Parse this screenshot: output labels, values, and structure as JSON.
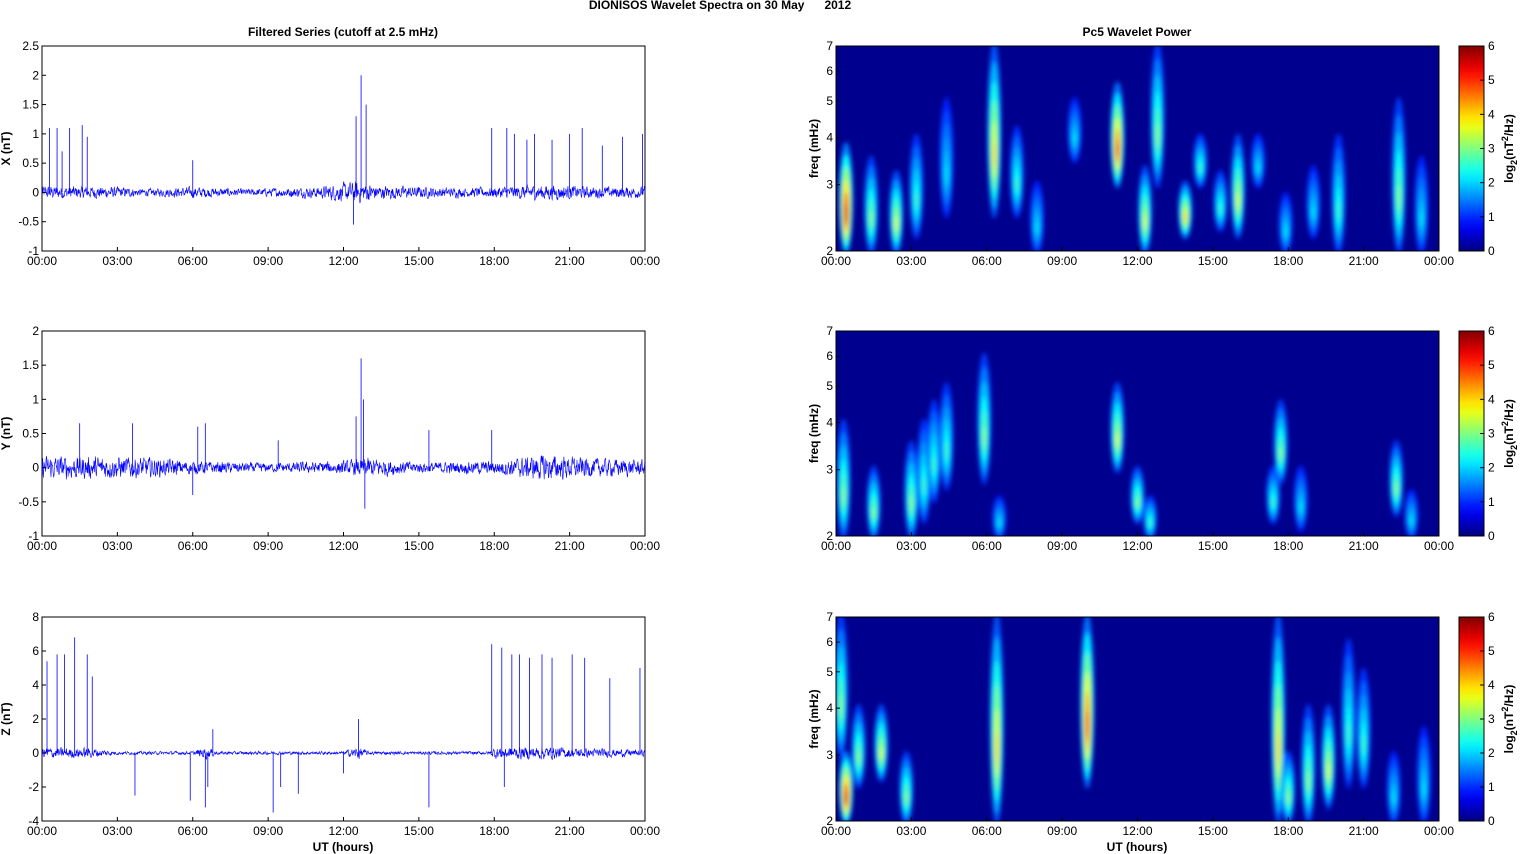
{
  "figure_title": "DIONISOS Wavelet Spectra on 30 May      2012",
  "left_title": "Filtered Series (cutoff at 2.5 mHz)",
  "right_title": "Pc5 Wavelet Power",
  "xlabel": "UT (hours)",
  "colors": {
    "trace": "#0000ff",
    "background": "#00008f"
  },
  "chart_data": [
    {
      "type": "line",
      "name": "X",
      "ylabel": "X (nT)",
      "xlim": [
        0,
        24
      ],
      "ylim": [
        -1,
        2.5
      ],
      "xticks": [
        "00:00",
        "03:00",
        "06:00",
        "09:00",
        "12:00",
        "15:00",
        "18:00",
        "21:00",
        "00:00"
      ],
      "yticks": [
        "-1",
        "-0.5",
        "0",
        "0.5",
        "1",
        "1.5",
        "2",
        "2.5"
      ],
      "ytick_values": [
        -1,
        -0.5,
        0,
        0.5,
        1,
        1.5,
        2,
        2.5
      ],
      "noise_amplitude": [
        [
          0,
          0.12
        ],
        [
          3,
          0.1
        ],
        [
          4,
          0.06
        ],
        [
          6,
          0.1
        ],
        [
          8,
          0.06
        ],
        [
          11,
          0.1
        ],
        [
          12.5,
          0.2
        ],
        [
          13.5,
          0.12
        ],
        [
          17,
          0.08
        ],
        [
          20,
          0.14
        ],
        [
          22,
          0.1
        ],
        [
          24,
          0.1
        ]
      ],
      "spikes": [
        [
          0.3,
          1.1
        ],
        [
          0.6,
          1.1
        ],
        [
          0.8,
          0.7
        ],
        [
          1.1,
          1.1
        ],
        [
          1.6,
          1.15
        ],
        [
          1.8,
          0.95
        ],
        [
          6.0,
          0.55
        ],
        [
          12.5,
          1.3
        ],
        [
          12.7,
          2.0
        ],
        [
          12.9,
          1.5
        ],
        [
          12.4,
          -0.55
        ],
        [
          17.9,
          1.1
        ],
        [
          18.5,
          1.1
        ],
        [
          18.8,
          1.0
        ],
        [
          19.3,
          0.9
        ],
        [
          19.6,
          1.0
        ],
        [
          20.3,
          0.9
        ],
        [
          21.0,
          1.0
        ],
        [
          21.5,
          1.1
        ],
        [
          22.3,
          0.8
        ],
        [
          23.1,
          0.95
        ],
        [
          23.9,
          1.0
        ]
      ]
    },
    {
      "type": "line",
      "name": "Y",
      "ylabel": "Y (nT)",
      "xlim": [
        0,
        24
      ],
      "ylim": [
        -1,
        2
      ],
      "xticks": [
        "00:00",
        "03:00",
        "06:00",
        "09:00",
        "12:00",
        "15:00",
        "18:00",
        "21:00",
        "00:00"
      ],
      "yticks": [
        "-1",
        "-0.5",
        "0",
        "0.5",
        "1",
        "1.5",
        "2"
      ],
      "ytick_values": [
        -1,
        -0.5,
        0,
        0.5,
        1,
        1.5,
        2
      ],
      "noise_amplitude": [
        [
          0,
          0.18
        ],
        [
          4,
          0.16
        ],
        [
          6,
          0.1
        ],
        [
          9,
          0.07
        ],
        [
          12,
          0.1
        ],
        [
          13,
          0.15
        ],
        [
          15,
          0.08
        ],
        [
          18,
          0.1
        ],
        [
          20,
          0.2
        ],
        [
          22,
          0.14
        ],
        [
          24,
          0.12
        ]
      ],
      "spikes": [
        [
          1.5,
          0.65
        ],
        [
          3.6,
          0.65
        ],
        [
          6.0,
          -0.4
        ],
        [
          6.2,
          0.6
        ],
        [
          6.5,
          0.65
        ],
        [
          9.4,
          0.4
        ],
        [
          12.5,
          0.75
        ],
        [
          12.7,
          1.6
        ],
        [
          12.8,
          1.0
        ],
        [
          12.85,
          -0.6
        ],
        [
          15.4,
          0.55
        ],
        [
          17.9,
          0.55
        ]
      ]
    },
    {
      "type": "line",
      "name": "Z",
      "ylabel": "Z (nT)",
      "xlim": [
        0,
        24
      ],
      "ylim": [
        -4,
        8
      ],
      "xticks": [
        "00:00",
        "03:00",
        "06:00",
        "09:00",
        "12:00",
        "15:00",
        "18:00",
        "21:00",
        "00:00"
      ],
      "yticks": [
        "-4",
        "-2",
        "0",
        "2",
        "4",
        "6",
        "8"
      ],
      "ytick_values": [
        -4,
        -2,
        0,
        2,
        4,
        6,
        8
      ],
      "noise_amplitude": [
        [
          0,
          0.35
        ],
        [
          2,
          0.3
        ],
        [
          3,
          0.1
        ],
        [
          6,
          0.1
        ],
        [
          6.5,
          0.4
        ],
        [
          7,
          0.1
        ],
        [
          12,
          0.1
        ],
        [
          12.6,
          0.4
        ],
        [
          13,
          0.1
        ],
        [
          17.8,
          0.1
        ],
        [
          18,
          0.35
        ],
        [
          20,
          0.4
        ],
        [
          21,
          0.3
        ],
        [
          24,
          0.2
        ]
      ],
      "spikes": [
        [
          0.2,
          5.4
        ],
        [
          0.6,
          5.8
        ],
        [
          0.9,
          5.8
        ],
        [
          1.3,
          6.8
        ],
        [
          1.8,
          5.8
        ],
        [
          2.0,
          4.5
        ],
        [
          3.7,
          -2.5
        ],
        [
          5.9,
          -2.8
        ],
        [
          6.5,
          -3.2
        ],
        [
          6.6,
          -2.0
        ],
        [
          6.8,
          1.4
        ],
        [
          9.2,
          -3.5
        ],
        [
          9.5,
          -2.0
        ],
        [
          10.2,
          -2.4
        ],
        [
          12.0,
          -1.2
        ],
        [
          12.6,
          2.0
        ],
        [
          15.4,
          -3.2
        ],
        [
          17.9,
          6.4
        ],
        [
          18.3,
          6.2
        ],
        [
          18.4,
          -2.0
        ],
        [
          18.7,
          5.8
        ],
        [
          19.0,
          5.8
        ],
        [
          19.4,
          5.6
        ],
        [
          19.9,
          5.8
        ],
        [
          20.3,
          5.6
        ],
        [
          21.1,
          5.8
        ],
        [
          21.6,
          5.6
        ],
        [
          22.6,
          4.4
        ],
        [
          23.8,
          5.0
        ]
      ]
    },
    {
      "type": "heatmap",
      "name": "X wavelet power",
      "ylabel": "freq (mHz)",
      "yscale": "log",
      "ylim": [
        2,
        7
      ],
      "clim": [
        0,
        6
      ],
      "colorbar_label": "log2(nT2/Hz)",
      "colorbar_ticks": [
        "0",
        "1",
        "2",
        "3",
        "4",
        "5",
        "6"
      ],
      "xticks": [
        "00:00",
        "03:00",
        "06:00",
        "09:00",
        "12:00",
        "15:00",
        "18:00",
        "21:00",
        "00:00"
      ],
      "yticks": [
        "2",
        "3",
        "4",
        "5",
        "6",
        "7"
      ],
      "ytick_values": [
        2,
        3,
        4,
        5,
        6,
        7
      ],
      "blobs_hour_flow_fhigh_power": [
        [
          0.4,
          2,
          3.8,
          5
        ],
        [
          1.4,
          2,
          3.5,
          2.5
        ],
        [
          2.4,
          2,
          3.2,
          3
        ],
        [
          3.2,
          2.2,
          4,
          2
        ],
        [
          4.4,
          2.5,
          5,
          1.5
        ],
        [
          6.3,
          2.5,
          7,
          3.5
        ],
        [
          7.2,
          2.5,
          4.2,
          2
        ],
        [
          8.0,
          2,
          3,
          1.5
        ],
        [
          9.5,
          3.5,
          5,
          1.5
        ],
        [
          11.2,
          3,
          5.5,
          4.5
        ],
        [
          12.3,
          2,
          3.3,
          3
        ],
        [
          12.8,
          3,
          7,
          2.5
        ],
        [
          13.9,
          2.2,
          3,
          3.5
        ],
        [
          14.5,
          3,
          4,
          2
        ],
        [
          15.3,
          2.3,
          3.2,
          2
        ],
        [
          16.0,
          2.2,
          4,
          3
        ],
        [
          16.8,
          3,
          4,
          1.5
        ],
        [
          17.9,
          2,
          2.8,
          1.5
        ],
        [
          19.0,
          2.2,
          3.3,
          1.5
        ],
        [
          20.0,
          2,
          4,
          2
        ],
        [
          22.4,
          2,
          5,
          2.5
        ],
        [
          23.3,
          2,
          3.5,
          1.5
        ]
      ]
    },
    {
      "type": "heatmap",
      "name": "Y wavelet power",
      "ylabel": "freq (mHz)",
      "yscale": "log",
      "ylim": [
        2,
        7
      ],
      "clim": [
        0,
        6
      ],
      "colorbar_label": "log2(nT2/Hz)",
      "colorbar_ticks": [
        "0",
        "1",
        "2",
        "3",
        "4",
        "5",
        "6"
      ],
      "xticks": [
        "00:00",
        "03:00",
        "06:00",
        "09:00",
        "12:00",
        "15:00",
        "18:00",
        "21:00",
        "00:00"
      ],
      "yticks": [
        "2",
        "3",
        "4",
        "5",
        "6",
        "7"
      ],
      "ytick_values": [
        2,
        3,
        4,
        5,
        6,
        7
      ],
      "blobs_hour_flow_fhigh_power": [
        [
          0.3,
          2,
          4,
          2.5
        ],
        [
          1.5,
          2,
          3,
          2.5
        ],
        [
          3.0,
          2,
          3.5,
          2.5
        ],
        [
          3.5,
          2.2,
          4,
          2
        ],
        [
          3.9,
          2.5,
          4.5,
          2
        ],
        [
          4.4,
          2.7,
          5,
          2
        ],
        [
          5.9,
          2.8,
          6,
          2.5
        ],
        [
          6.5,
          2,
          2.5,
          1.5
        ],
        [
          11.2,
          3,
          5,
          3
        ],
        [
          12.0,
          2.2,
          3,
          2.5
        ],
        [
          12.5,
          2,
          2.5,
          2
        ],
        [
          17.4,
          2.2,
          3,
          2
        ],
        [
          17.7,
          2.8,
          4.5,
          2.5
        ],
        [
          18.5,
          2.1,
          3,
          1.5
        ],
        [
          22.3,
          2.3,
          3.5,
          2.5
        ],
        [
          22.9,
          2,
          2.6,
          1.5
        ]
      ]
    },
    {
      "type": "heatmap",
      "name": "Z wavelet power",
      "ylabel": "freq (mHz)",
      "yscale": "log",
      "ylim": [
        2,
        7
      ],
      "clim": [
        0,
        6
      ],
      "colorbar_label": "log2(nT2/Hz)",
      "colorbar_ticks": [
        "0",
        "1",
        "2",
        "3",
        "4",
        "5",
        "6"
      ],
      "xticks": [
        "00:00",
        "03:00",
        "06:00",
        "09:00",
        "12:00",
        "15:00",
        "18:00",
        "21:00",
        "00:00"
      ],
      "yticks": [
        "2",
        "3",
        "4",
        "5",
        "6",
        "7"
      ],
      "ytick_values": [
        2,
        3,
        4,
        5,
        6,
        7
      ],
      "blobs_hour_flow_fhigh_power": [
        [
          0.4,
          2,
          3,
          5
        ],
        [
          0.2,
          3,
          7,
          2.5
        ],
        [
          0.9,
          2.5,
          4,
          2.5
        ],
        [
          1.8,
          2.6,
          4,
          3
        ],
        [
          2.8,
          2,
          3,
          2.5
        ],
        [
          6.4,
          2,
          7,
          3.5
        ],
        [
          10.0,
          2.5,
          7,
          4.5
        ],
        [
          17.6,
          2,
          7,
          3.5
        ],
        [
          18.0,
          2,
          3,
          2.5
        ],
        [
          18.8,
          2,
          4,
          2.5
        ],
        [
          19.6,
          2.2,
          4,
          3
        ],
        [
          20.4,
          2.5,
          6,
          2
        ],
        [
          21.0,
          2.5,
          5,
          2
        ],
        [
          22.2,
          2,
          3,
          1.5
        ],
        [
          23.4,
          2,
          3.5,
          1.5
        ]
      ]
    }
  ]
}
